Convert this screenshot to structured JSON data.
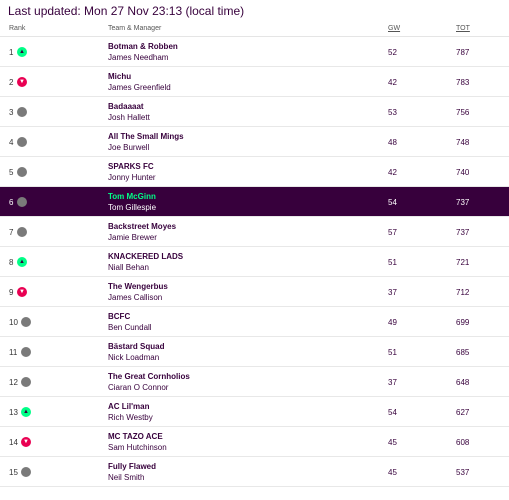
{
  "last_updated": "Last updated: Mon 27 Nov 23:13 (local time)",
  "headers": {
    "rank": "Rank",
    "team": "Team & Manager",
    "gw": "GW",
    "tot": "TOT"
  },
  "colors": {
    "primary": "#37003c",
    "up": "#00ff87",
    "down": "#e90052",
    "same": "#7a7a7a"
  },
  "rows": [
    {
      "rank": "1",
      "movement": "up",
      "team": "Botman & Robben",
      "manager": "James Needham",
      "gw": "52",
      "tot": "787"
    },
    {
      "rank": "2",
      "movement": "down",
      "team": "Michu",
      "manager": "James Greenfield",
      "gw": "42",
      "tot": "783"
    },
    {
      "rank": "3",
      "movement": "same",
      "team": "Badaaaat",
      "manager": "Josh Hallett",
      "gw": "53",
      "tot": "756"
    },
    {
      "rank": "4",
      "movement": "same",
      "team": "All The Small Mings",
      "manager": "Joe Burwell",
      "gw": "48",
      "tot": "748"
    },
    {
      "rank": "5",
      "movement": "same",
      "team": "SPARKS FC",
      "manager": "Jonny Hunter",
      "gw": "42",
      "tot": "740"
    },
    {
      "rank": "6",
      "movement": "same",
      "team": "Tom McGinn",
      "manager": "Tom Gillespie",
      "gw": "54",
      "tot": "737",
      "highlight": true
    },
    {
      "rank": "7",
      "movement": "same",
      "team": "Backstreet Moyes",
      "manager": "Jamie Brewer",
      "gw": "57",
      "tot": "737"
    },
    {
      "rank": "8",
      "movement": "up",
      "team": "KNACKERED LADS",
      "manager": "Niall Behan",
      "gw": "51",
      "tot": "721"
    },
    {
      "rank": "9",
      "movement": "down",
      "team": "The Wengerbus",
      "manager": "James Callison",
      "gw": "37",
      "tot": "712"
    },
    {
      "rank": "10",
      "movement": "same",
      "team": "BCFC",
      "manager": "Ben Cundall",
      "gw": "49",
      "tot": "699"
    },
    {
      "rank": "11",
      "movement": "same",
      "team": "Bästard Squad",
      "manager": "Nick Loadman",
      "gw": "51",
      "tot": "685"
    },
    {
      "rank": "12",
      "movement": "same",
      "team": "The Great Cornholios",
      "manager": "Ciaran O Connor",
      "gw": "37",
      "tot": "648"
    },
    {
      "rank": "13",
      "movement": "up",
      "team": "AC Lil'man",
      "manager": "Rich Westby",
      "gw": "54",
      "tot": "627"
    },
    {
      "rank": "14",
      "movement": "down",
      "team": "MC TAZO ACE",
      "manager": "Sam Hutchinson",
      "gw": "45",
      "tot": "608"
    },
    {
      "rank": "15",
      "movement": "same",
      "team": "Fully Flawed",
      "manager": "Neil Smith",
      "gw": "45",
      "tot": "537"
    }
  ]
}
